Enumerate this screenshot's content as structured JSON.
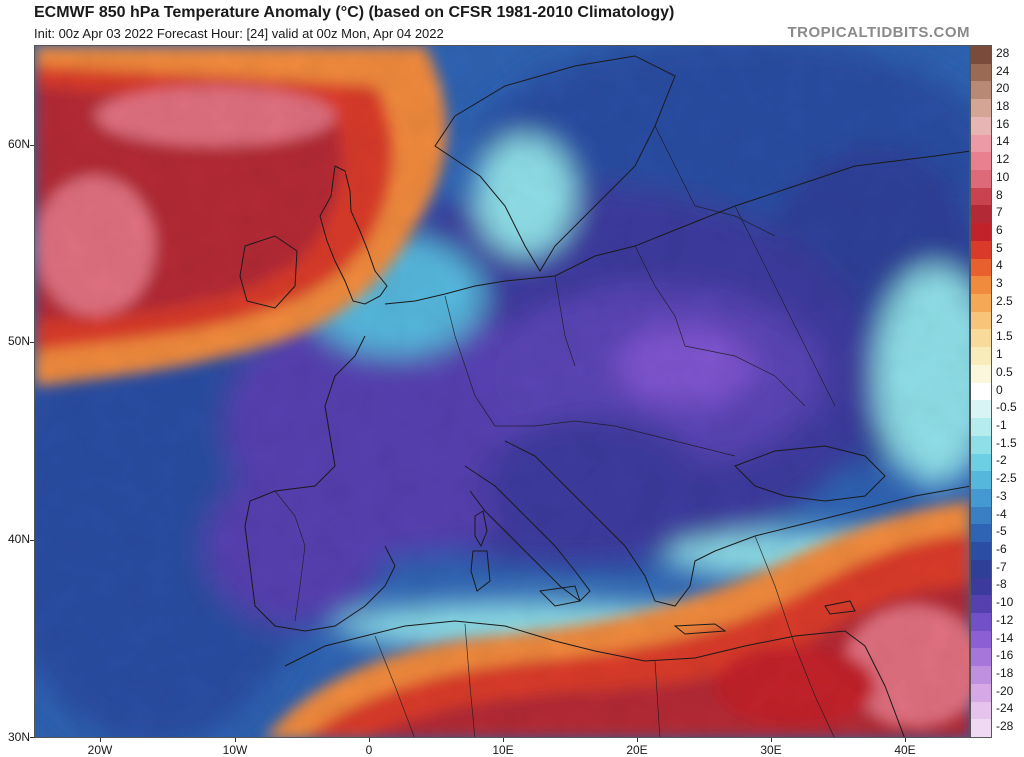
{
  "header": {
    "title": "ECMWF 850 hPa Temperature Anomaly (°C) (based on CFSR 1981-2010 Climatology)",
    "subtitle": "Init: 00z Apr 03 2022   Forecast Hour: [24]   valid at 00z Mon, Apr 04 2022",
    "brand": "TROPICALTIDBITS.COM"
  },
  "axes": {
    "lat_labels": [
      "60N",
      "50N",
      "40N",
      "30N"
    ],
    "lon_labels": [
      "20W",
      "10W",
      "0",
      "10E",
      "20E",
      "30E",
      "40E"
    ]
  },
  "colorbar": {
    "labels": [
      "28",
      "24",
      "20",
      "18",
      "16",
      "14",
      "12",
      "10",
      "8",
      "7",
      "6",
      "5",
      "4",
      "3",
      "2.5",
      "2",
      "1.5",
      "1",
      "0.5",
      "0",
      "-0.5",
      "-1",
      "-1.5",
      "-2",
      "-2.5",
      "-3",
      "-4",
      "-5",
      "-6",
      "-7",
      "-8",
      "-10",
      "-12",
      "-14",
      "-16",
      "-18",
      "-20",
      "-24",
      "-28"
    ],
    "colors": [
      "#7a4a3a",
      "#9a6a55",
      "#b88a75",
      "#d4a595",
      "#e8b5b5",
      "#ec9aa5",
      "#e8808f",
      "#dc6a78",
      "#c8424f",
      "#b32a36",
      "#c2232b",
      "#d93a2a",
      "#e8602e",
      "#f08a3c",
      "#f5a855",
      "#f7c47a",
      "#f8db9a",
      "#f9ecbb",
      "#fbf7dc",
      "#ffffff",
      "#d8f4f4",
      "#b5ecee",
      "#8fdfe8",
      "#6ccfe4",
      "#56b7dd",
      "#4599d2",
      "#3a7fc4",
      "#2f63b3",
      "#2a4ea3",
      "#2f3f98",
      "#3d3a9e",
      "#5640b0",
      "#7150c8",
      "#8d5fd4",
      "#a676db",
      "#bf8fe0",
      "#d6a9e6",
      "#e6c3ec",
      "#f0d9f3"
    ]
  },
  "map_colors": {
    "warm_dark": "#b32a36",
    "warm_mid": "#d93a2a",
    "warm_light": "#f08a3c",
    "warm_pink": "#e0707f",
    "neutral": "#ffffff",
    "cool_light": "#8fdfe8",
    "cool_mid": "#3a7fc4",
    "cool_dark": "#2a4ea3",
    "cold_purple": "#5a45b5",
    "cold_violet": "#7f55cf",
    "border_line": "#1a1a1a"
  }
}
